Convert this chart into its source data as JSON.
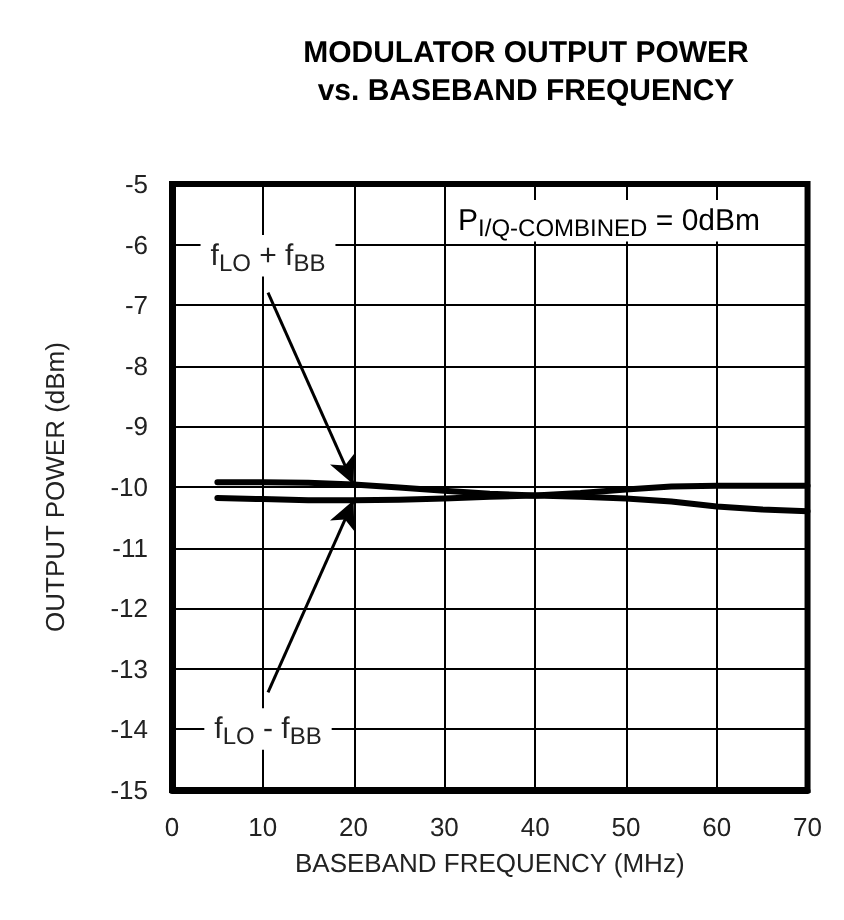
{
  "chart_data": {
    "type": "line",
    "title": "MODULATOR OUTPUT POWER\nvs. BASEBAND FREQUENCY",
    "xlabel": "BASEBAND FREQUENCY (MHz)",
    "ylabel": "OUTPUT POWER (dBm)",
    "xlim": [
      0,
      70
    ],
    "xticks": [
      0,
      10,
      20,
      30,
      40,
      50,
      60,
      70
    ],
    "ylim": [
      -15,
      -5
    ],
    "yticks": [
      -15,
      -14,
      -13,
      -12,
      -11,
      -10,
      -9,
      -8,
      -7,
      -6,
      -5
    ],
    "grid": true,
    "marker": "none",
    "line_style": "solid",
    "series": [
      {
        "color": "#000000",
        "x": [
          5,
          10,
          15,
          20,
          25,
          30,
          35,
          40,
          45,
          50,
          55,
          60,
          65,
          70
        ],
        "values": [
          -9.92,
          -9.92,
          -9.93,
          -9.96,
          -10.01,
          -10.06,
          -10.11,
          -10.14,
          -10.1,
          -10.04,
          -9.99,
          -9.98,
          -9.98,
          -9.98
        ]
      },
      {
        "color": "#000000",
        "x": [
          5,
          10,
          15,
          20,
          25,
          30,
          35,
          40,
          45,
          50,
          55,
          60,
          65,
          70
        ],
        "values": [
          -10.18,
          -10.2,
          -10.22,
          -10.22,
          -10.21,
          -10.19,
          -10.16,
          -10.14,
          -10.16,
          -10.19,
          -10.24,
          -10.32,
          -10.37,
          -10.4
        ]
      }
    ],
    "annotations": [
      "P$_{I/Q-COMBINED}$ = 0dBm",
      {
        "text": "f$_{LO}$ + f$_{BB}$",
        "x": 20,
        "y": -9.96
      },
      {
        "text": "f$_{LO}$ - f$_{BB}$",
        "x": 20,
        "y": -10.22
      }
    ]
  }
}
